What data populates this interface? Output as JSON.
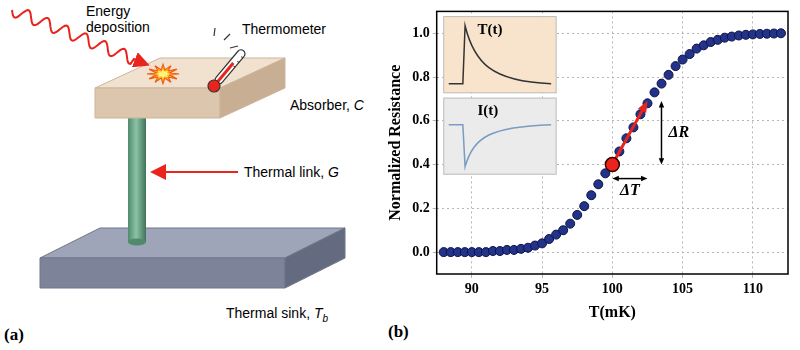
{
  "diagram": {
    "panel_label": "(a)",
    "energy": "Energy deposition",
    "thermometer": "Thermometer",
    "absorber": {
      "text": "Absorber,",
      "symbol": "C"
    },
    "link": {
      "text": "Thermal link,",
      "symbol": "G"
    },
    "sink": {
      "text": "Thermal sink,",
      "symbol": "T",
      "subscript": "b"
    }
  },
  "chart_data": {
    "type": "scatter",
    "panel_label": "(b)",
    "x_label": "T(mK)",
    "y_label": "Normalized Resistance",
    "x": [
      88,
      88.5,
      89,
      89.5,
      90,
      90.5,
      91,
      91.5,
      92,
      92.5,
      93,
      93.5,
      94,
      94.5,
      95,
      95.5,
      96,
      96.5,
      97,
      97.5,
      98,
      98.5,
      99,
      99.5,
      100,
      100.5,
      101,
      101.5,
      102,
      102.5,
      103,
      103.5,
      104,
      104.5,
      105,
      105.5,
      106,
      106.5,
      107,
      107.5,
      108,
      108.5,
      109,
      109.5,
      110,
      110.5,
      111,
      111.5,
      112
    ],
    "values": [
      0,
      0,
      0,
      0,
      0,
      0,
      0,
      0.005,
      0.005,
      0.01,
      0.01,
      0.015,
      0.02,
      0.03,
      0.04,
      0.06,
      0.08,
      0.1,
      0.13,
      0.17,
      0.21,
      0.26,
      0.31,
      0.36,
      0.4,
      0.46,
      0.52,
      0.57,
      0.63,
      0.68,
      0.73,
      0.77,
      0.81,
      0.85,
      0.88,
      0.905,
      0.93,
      0.945,
      0.96,
      0.97,
      0.98,
      0.985,
      0.99,
      0.993,
      0.995,
      0.997,
      0.998,
      0.999,
      1.0
    ],
    "color": "#23338a",
    "marker": "circle",
    "xlim": [
      87.5,
      112.5
    ],
    "ylim": [
      -0.1,
      1.1
    ],
    "xticks": [
      90,
      95,
      100,
      105,
      110
    ],
    "yticks": [
      {
        "value": 0,
        "label": "0.0"
      },
      {
        "value": 0.2,
        "label": "0.2"
      },
      {
        "value": 0.4,
        "label": "0.4"
      },
      {
        "value": 0.6,
        "label": "0.6"
      },
      {
        "value": 0.8,
        "label": "0.8"
      },
      {
        "value": 1,
        "label": "1.0"
      }
    ],
    "grid": true,
    "insets": [
      {
        "title": "T(t)"
      },
      {
        "title": "I(t)"
      }
    ],
    "annotation": {
      "point": [
        100,
        0.4
      ],
      "arrow_to": [
        102.5,
        0.69
      ],
      "delta_t_label": "ΔT",
      "delta_r_label": "ΔR"
    }
  }
}
